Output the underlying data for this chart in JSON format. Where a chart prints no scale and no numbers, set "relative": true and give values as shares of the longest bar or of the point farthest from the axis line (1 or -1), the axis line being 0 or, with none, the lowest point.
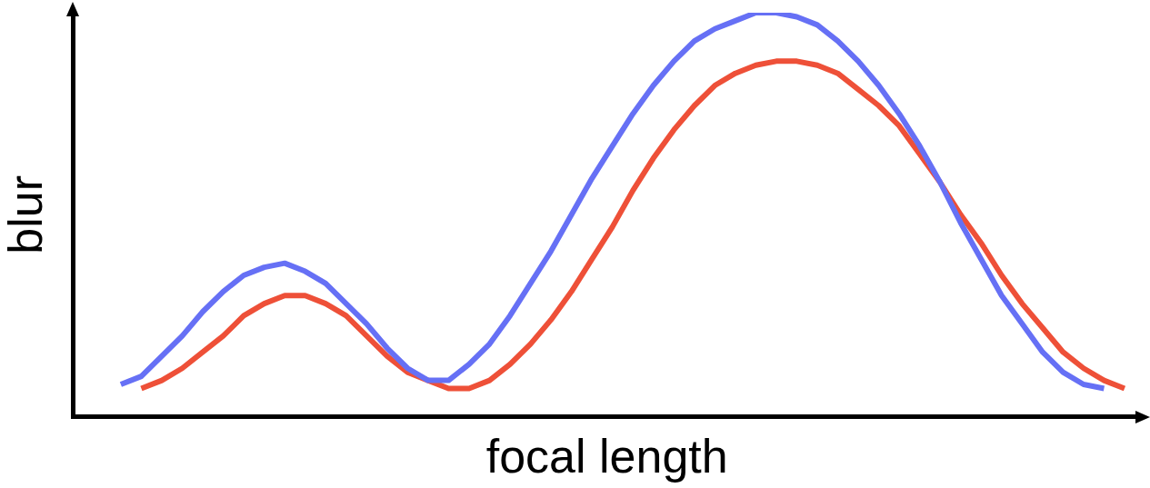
{
  "chart_data": {
    "type": "line",
    "relative": true,
    "xlabel": "focal length",
    "ylabel": "blur",
    "tick_labels": false,
    "marker": "none",
    "line_style": "solid",
    "categories": [
      null,
      null,
      null,
      null,
      null,
      null,
      null,
      null,
      null,
      null,
      null,
      null,
      null,
      null,
      null,
      null,
      null,
      null,
      null,
      null,
      null,
      null,
      null,
      null,
      null,
      null,
      null,
      null,
      null,
      null,
      null,
      null,
      null,
      null,
      null,
      null,
      null,
      null,
      null,
      null,
      null,
      null,
      null,
      null,
      null,
      null,
      null,
      null,
      null,
      null
    ],
    "series": [
      {
        "color": "#6670f5",
        "values": [
          0.08,
          0.1,
          0.15,
          0.2,
          0.26,
          0.31,
          0.35,
          0.37,
          0.38,
          0.36,
          0.33,
          0.28,
          0.23,
          0.17,
          0.12,
          0.09,
          0.09,
          0.13,
          0.18,
          0.25,
          0.33,
          0.41,
          0.5,
          0.59,
          0.67,
          0.75,
          0.82,
          0.88,
          0.93,
          0.96,
          0.98,
          1,
          1,
          0.99,
          0.97,
          0.93,
          0.88,
          0.82,
          0.75,
          0.67,
          0.58,
          0.48,
          0.39,
          0.3,
          0.23,
          0.16,
          0.11,
          0.08,
          0.07,
          null
        ]
      },
      {
        "color": "#ee5038",
        "values": [
          null,
          0.07,
          0.09,
          0.12,
          0.16,
          0.2,
          0.25,
          0.28,
          0.3,
          0.3,
          0.28,
          0.25,
          0.2,
          0.15,
          0.11,
          0.09,
          0.07,
          0.07,
          0.09,
          0.13,
          0.18,
          0.24,
          0.31,
          0.39,
          0.47,
          0.56,
          0.64,
          0.71,
          0.77,
          0.82,
          0.85,
          0.87,
          0.88,
          0.88,
          0.87,
          0.85,
          0.81,
          0.77,
          0.72,
          0.65,
          0.58,
          0.5,
          0.43,
          0.35,
          0.28,
          0.22,
          0.16,
          0.12,
          0.09,
          0.07
        ]
      }
    ]
  }
}
